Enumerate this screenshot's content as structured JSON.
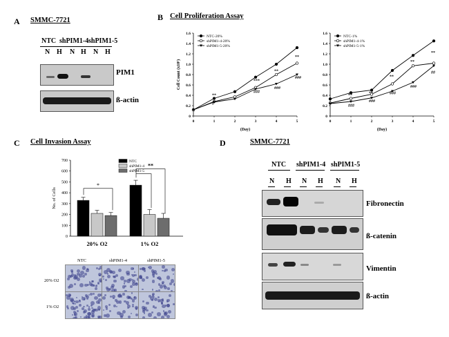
{
  "panels": {
    "A": {
      "label": "A",
      "title": "SMMC-7721",
      "groups": [
        "NTC",
        "shPIM1-4",
        "shPIM1-5"
      ],
      "lanes": [
        "N",
        "H",
        "N",
        "H",
        "N",
        "H"
      ],
      "blots": [
        "PIM1",
        "ß-actin"
      ]
    },
    "B": {
      "label": "B",
      "title": "Cell Proliferation Assay"
    },
    "C": {
      "label": "C",
      "title": "Cell Invasion Assay",
      "images_cols": [
        "NTC",
        "shPIM1-4",
        "shPIM1-5"
      ],
      "images_rows": [
        "20% O2",
        "1% O2"
      ]
    },
    "D": {
      "label": "D",
      "title": "SMMC-7721",
      "groups": [
        "NTC",
        "shPIM1-4",
        "shPIM1-5"
      ],
      "lanes": [
        "N",
        "H",
        "N",
        "H",
        "N",
        "H"
      ],
      "blots": [
        "Fibronectin",
        "ß-catenin",
        "Vimentin",
        "ß-actin"
      ]
    }
  },
  "chart_data": [
    {
      "type": "line",
      "x": [
        0,
        1,
        2,
        3,
        4,
        5
      ],
      "xlabel": "(Day)",
      "ylabel": "Cell Count (x10⁵)",
      "ylim": [
        0,
        1.6
      ],
      "yticks": [
        "0",
        "0.2",
        "0.4",
        "0.6",
        "0.8",
        "1.0",
        "1.2",
        "1.4",
        "1.6"
      ],
      "xticks": [
        "0",
        "1",
        "2",
        "3",
        "4",
        "5"
      ],
      "series": [
        {
          "name": "NTC-20%",
          "values": [
            0.12,
            0.34,
            0.47,
            0.75,
            1.0,
            1.32
          ],
          "color": "#000"
        },
        {
          "name": "shPIM1-4-20%",
          "values": [
            0.12,
            0.28,
            0.37,
            0.55,
            0.8,
            1.02
          ],
          "color": "#fff"
        },
        {
          "name": "shPIM1-5-20%",
          "values": [
            0.12,
            0.27,
            0.33,
            0.52,
            0.62,
            0.8
          ],
          "color": "#000"
        }
      ],
      "annotations": [
        "**",
        "#",
        "***",
        "###",
        "**",
        "###",
        "**",
        "###"
      ]
    },
    {
      "type": "line",
      "x": [
        0,
        1,
        2,
        3,
        4,
        5
      ],
      "xlabel": "(Day)",
      "ylabel": "",
      "ylim": [
        0,
        1.6
      ],
      "yticks": [
        "0",
        "0.2",
        "0.4",
        "0.6",
        "0.8",
        "1.0",
        "1.2",
        "1.4",
        "1.6"
      ],
      "xticks": [
        "0",
        "1",
        "2",
        "3",
        "4",
        "5"
      ],
      "series": [
        {
          "name": "NTC-1%",
          "values": [
            0.33,
            0.45,
            0.5,
            0.88,
            1.17,
            1.45
          ],
          "color": "#000"
        },
        {
          "name": "shPIM1-4-1%",
          "values": [
            0.25,
            0.34,
            0.42,
            0.62,
            0.97,
            1.02
          ],
          "color": "#fff"
        },
        {
          "name": "shPIM1-5-1%",
          "values": [
            0.24,
            0.28,
            0.35,
            0.48,
            0.65,
            0.97
          ],
          "color": "#000"
        }
      ],
      "annotations": [
        "**",
        "###",
        "**",
        "###",
        "**",
        "###",
        "**",
        "###",
        "**",
        "##"
      ]
    },
    {
      "type": "bar",
      "categories": [
        "20% O2",
        "1% O2"
      ],
      "ylabel": "No. of Cells",
      "ylim": [
        0,
        700
      ],
      "yticks": [
        "0",
        "100",
        "200",
        "300",
        "400",
        "500",
        "600",
        "700"
      ],
      "series": [
        {
          "name": "NTC",
          "values": [
            330,
            470
          ],
          "color": "#000000"
        },
        {
          "name": "shPIM1-4",
          "values": [
            210,
            200
          ],
          "color": "#c8c8c8"
        },
        {
          "name": "shPIM1-5",
          "values": [
            190,
            165
          ],
          "color": "#6d6d6d"
        }
      ],
      "annotations": [
        "*",
        "**"
      ]
    }
  ]
}
